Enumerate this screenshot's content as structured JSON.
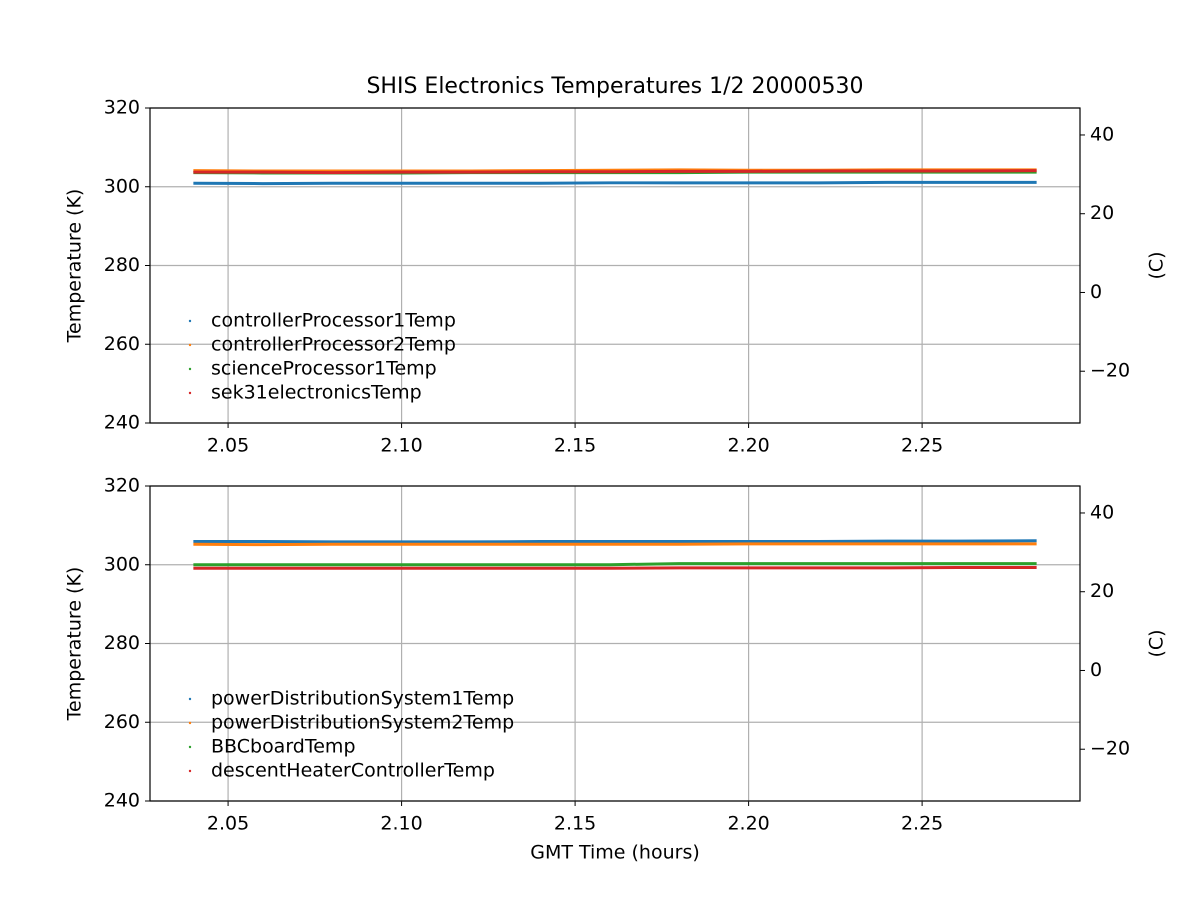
{
  "chart_data": [
    {
      "type": "line",
      "title": "SHIS Electronics Temperatures 1/2 20000530",
      "ylabel": "Temperature (K)",
      "y2label": "(C)",
      "x": [
        2.04,
        2.06,
        2.08,
        2.1,
        2.12,
        2.14,
        2.16,
        2.18,
        2.2,
        2.22,
        2.24,
        2.26,
        2.283
      ],
      "series": [
        {
          "name": "controllerProcessor1Temp",
          "color": "#1f77b4",
          "values": [
            300.9,
            300.8,
            300.9,
            300.9,
            300.9,
            300.9,
            301.0,
            301.0,
            301.0,
            301.0,
            301.1,
            301.1,
            301.1
          ]
        },
        {
          "name": "controllerProcessor2Temp",
          "color": "#ff7f0e",
          "values": [
            304.1,
            304.0,
            304.0,
            304.0,
            304.0,
            304.1,
            304.2,
            304.3,
            304.2,
            304.2,
            304.3,
            304.3,
            304.3
          ]
        },
        {
          "name": "scienceProcessor1Temp",
          "color": "#2ca02c",
          "values": [
            303.6,
            303.5,
            303.5,
            303.5,
            303.6,
            303.6,
            303.6,
            303.6,
            303.7,
            303.7,
            303.7,
            303.7,
            303.7
          ]
        },
        {
          "name": "sek31electronicsTemp",
          "color": "#d62728",
          "values": [
            303.7,
            303.7,
            303.6,
            303.7,
            303.7,
            303.8,
            303.8,
            303.9,
            303.9,
            304.0,
            304.0,
            304.0,
            304.1
          ]
        }
      ],
      "xlim": [
        2.0275,
        2.2955
      ],
      "xticks": [
        2.05,
        {
          "value": 2.1,
          "label": "2.10"
        },
        2.15,
        {
          "value": 2.2,
          "label": "2.20"
        },
        2.25
      ],
      "ylim": [
        240,
        320
      ],
      "yticks": [
        240,
        260,
        280,
        300,
        320
      ],
      "y2lim": [
        -33.15,
        46.85
      ],
      "y2ticks": [
        {
          "value": -20,
          "label": "−20"
        },
        0,
        20,
        40
      ],
      "grid": true,
      "legend": "lower left"
    },
    {
      "type": "line",
      "ylabel": "Temperature (K)",
      "y2label": "(C)",
      "xlabel": "GMT Time (hours)",
      "x": [
        2.04,
        2.06,
        2.08,
        2.1,
        2.12,
        2.14,
        2.16,
        2.18,
        2.2,
        2.22,
        2.24,
        2.26,
        2.283
      ],
      "series": [
        {
          "name": "powerDistributionSystem1Temp",
          "color": "#1f77b4",
          "values": [
            305.9,
            305.9,
            305.8,
            305.8,
            305.8,
            305.9,
            305.9,
            305.9,
            305.9,
            305.9,
            306.0,
            306.0,
            306.1
          ]
        },
        {
          "name": "powerDistributionSystem2Temp",
          "color": "#ff7f0e",
          "values": [
            305.2,
            305.1,
            305.2,
            305.2,
            305.2,
            305.2,
            305.2,
            305.2,
            305.3,
            305.3,
            305.3,
            305.3,
            305.3
          ]
        },
        {
          "name": "BBCboardTemp",
          "color": "#2ca02c",
          "values": [
            300.0,
            300.0,
            300.0,
            300.0,
            300.0,
            300.0,
            300.0,
            300.3,
            300.3,
            300.3,
            300.3,
            300.3,
            300.3
          ]
        },
        {
          "name": "descentHeaterControllerTemp",
          "color": "#d62728",
          "values": [
            299.1,
            299.1,
            299.1,
            299.1,
            299.1,
            299.1,
            299.1,
            299.2,
            299.2,
            299.2,
            299.2,
            299.3,
            299.3
          ]
        }
      ],
      "xlim": [
        2.0275,
        2.2955
      ],
      "xticks": [
        2.05,
        {
          "value": 2.1,
          "label": "2.10"
        },
        2.15,
        {
          "value": 2.2,
          "label": "2.20"
        },
        2.25
      ],
      "ylim": [
        240,
        320
      ],
      "yticks": [
        240,
        260,
        280,
        300,
        320
      ],
      "y2lim": [
        -33.15,
        46.85
      ],
      "y2ticks": [
        {
          "value": -20,
          "label": "−20"
        },
        0,
        20,
        40
      ],
      "grid": true,
      "legend": "lower left"
    }
  ]
}
